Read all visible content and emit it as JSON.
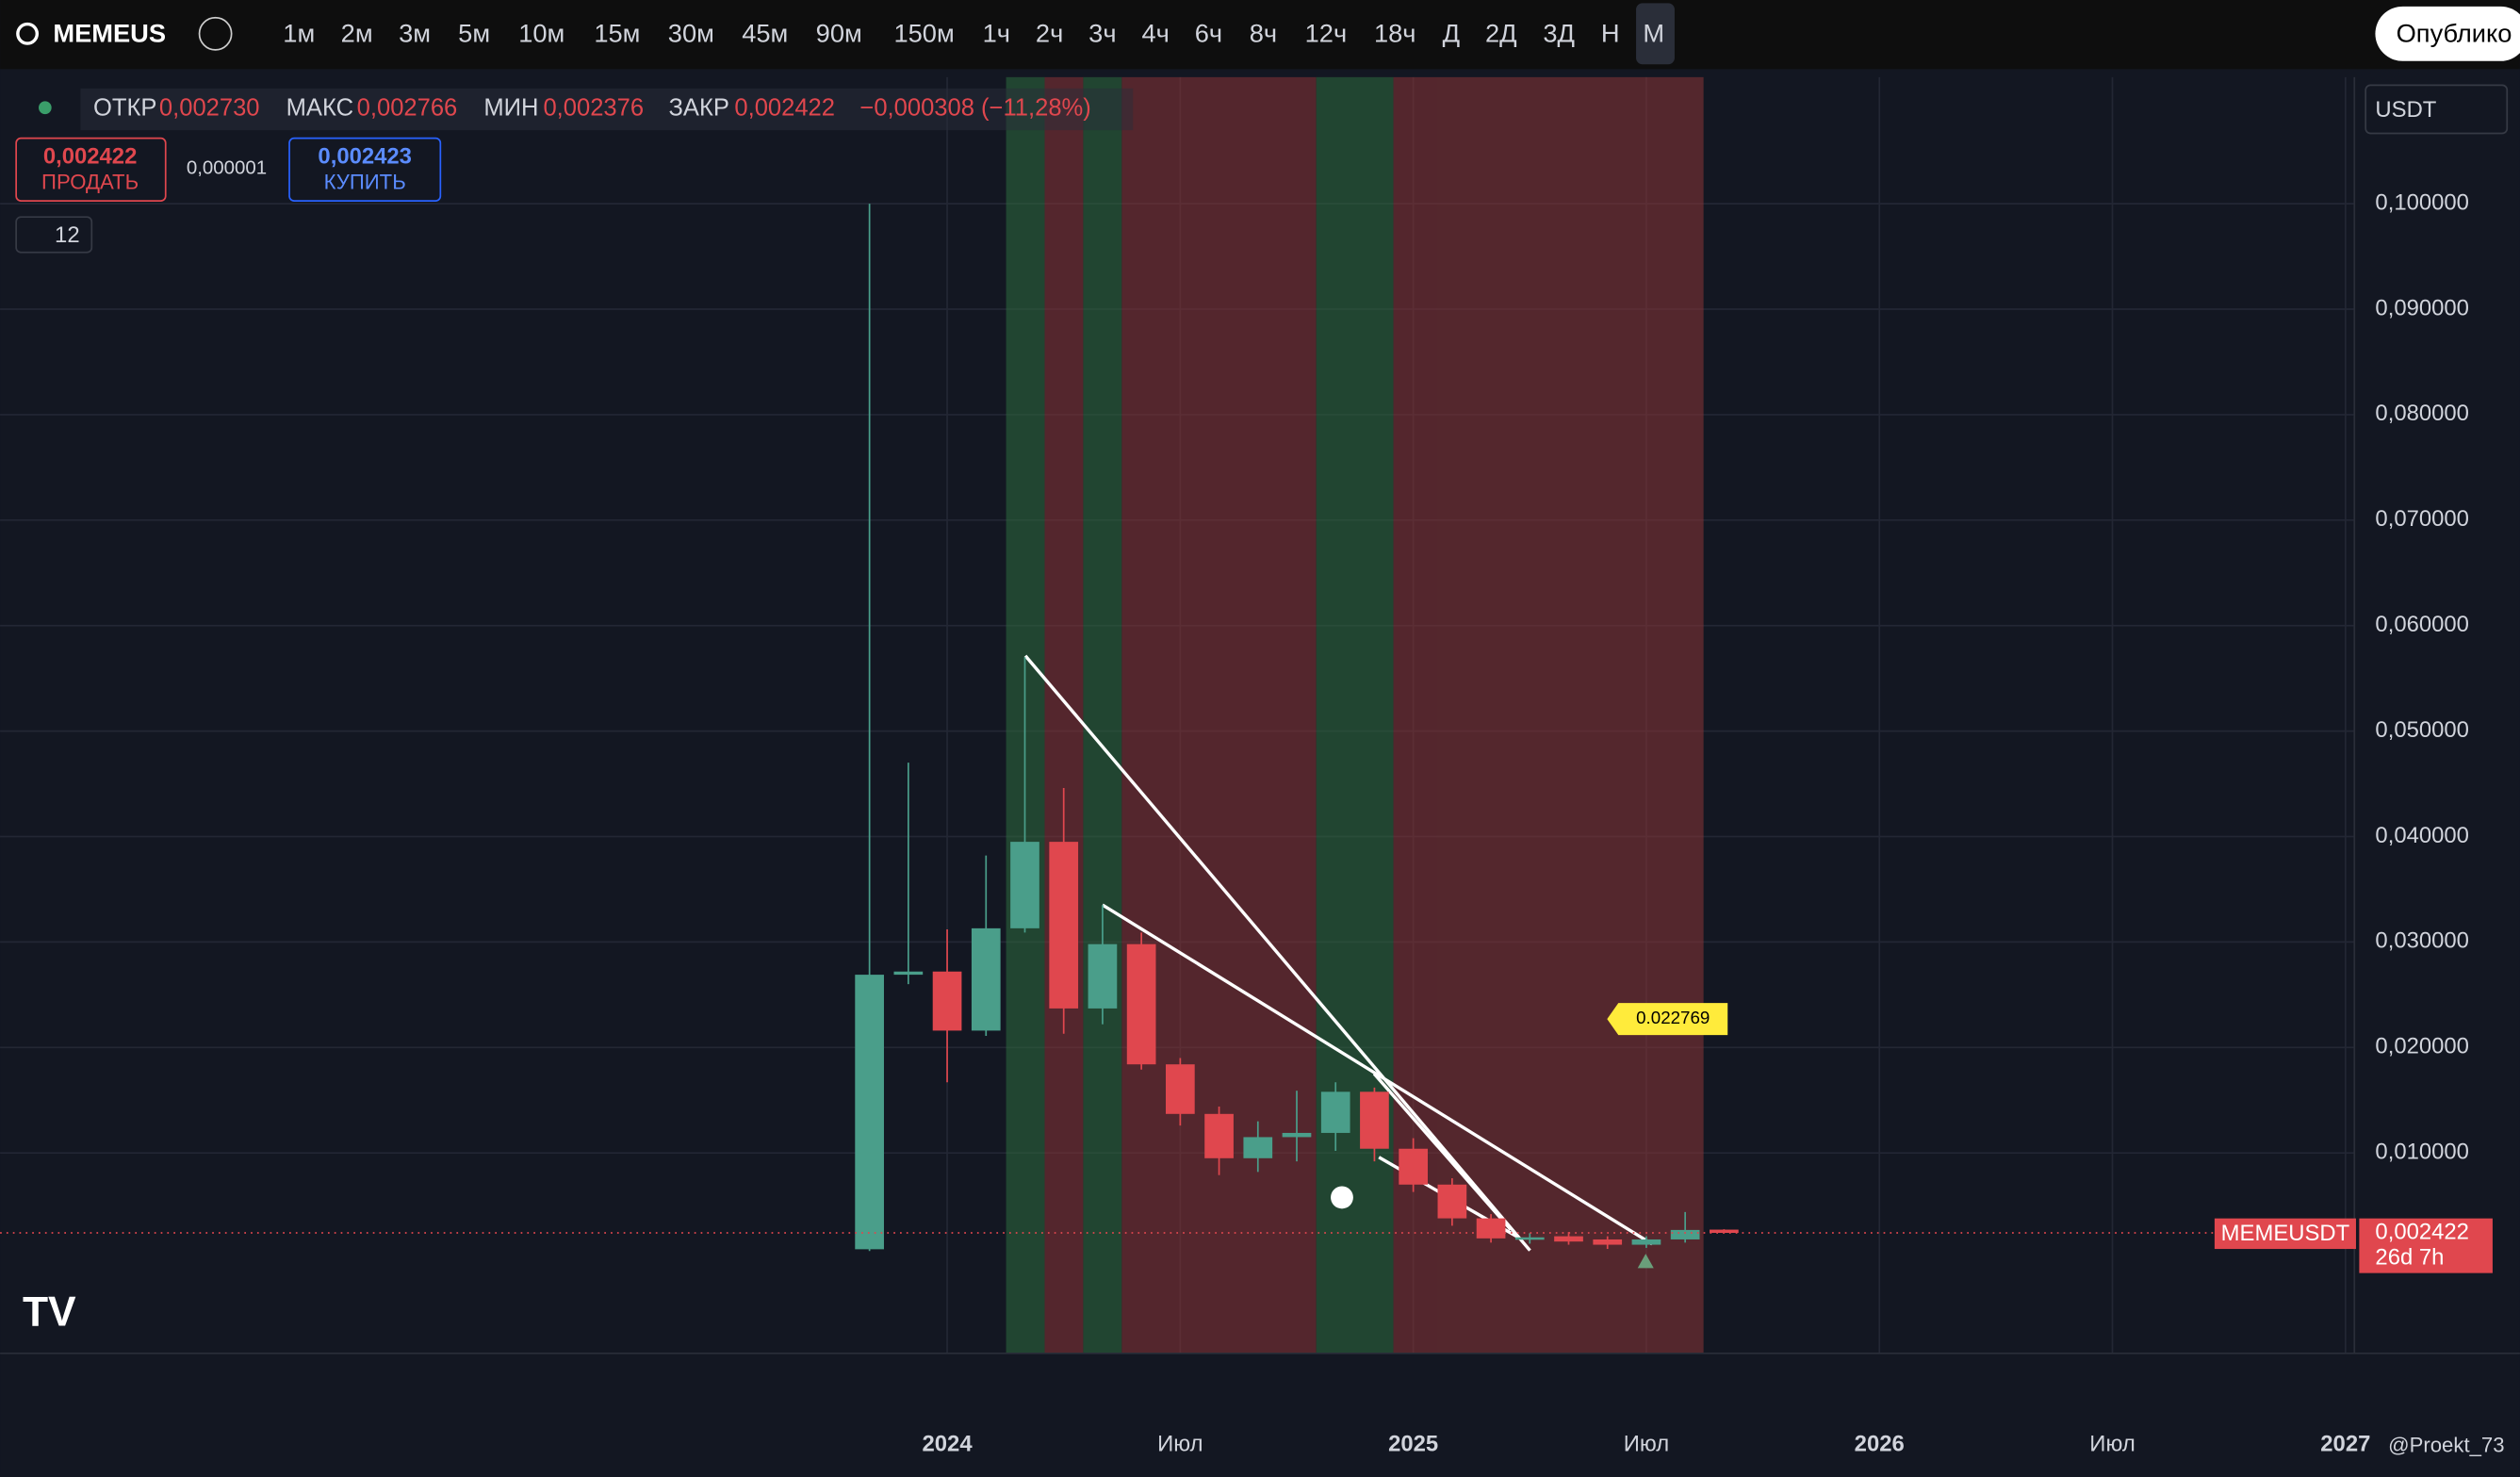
{
  "toolbar": {
    "symbol": "MEMEUS",
    "intervals": [
      "1м",
      "2м",
      "3м",
      "5м",
      "10м",
      "15м",
      "30м",
      "45м",
      "90м",
      "150м",
      "1ч",
      "2ч",
      "3ч",
      "4ч",
      "6ч",
      "8ч",
      "12ч",
      "18ч",
      "Д",
      "2Д",
      "3Д",
      "Н",
      "М"
    ],
    "publish": "Опублико"
  },
  "legend": {
    "open_name": "ОТКР",
    "open": "0,002730",
    "high_name": "МАКС",
    "high": "0,002766",
    "low_name": "МИН",
    "low": "0,002376",
    "close_name": "ЗАКР",
    "close": "0,002422",
    "change": "−0,000308 (−11,28%)"
  },
  "trade": {
    "sell": "0,002422",
    "sell_label": "ПРОДАТЬ",
    "spread": "0,000001",
    "buy": "0,002423",
    "buy_label": "КУПИТЬ",
    "indicators": "12",
    "currency": "USDT"
  },
  "alert_price": "0.022769",
  "price_tag": {
    "symbol": "MEMEUSDT",
    "price": "0,002422",
    "countdown": "26d 7h"
  },
  "watermark": "@Proekt_73",
  "chart_data": {
    "type": "candlestick",
    "up_color": "#4a9e8a",
    "down_color": "#e0474e",
    "grid": true,
    "categories": [
      null,
      null,
      "2024",
      null,
      null,
      null,
      null,
      null,
      "Июл",
      null,
      null,
      null,
      null,
      null,
      "2025",
      null,
      null,
      null,
      null,
      null,
      "Июл",
      null,
      null,
      null,
      null,
      null,
      "2026",
      null,
      null,
      null,
      null,
      null,
      "Июл",
      null,
      null,
      null,
      null,
      null,
      "2027"
    ],
    "open": [
      0.00087,
      0.0269,
      0.0272,
      0.0216,
      0.0313,
      0.0395,
      0.0237,
      0.0298,
      0.0184,
      0.0137,
      0.0095,
      0.0115,
      0.0119,
      0.0158,
      0.0104,
      0.007,
      0.0038,
      0.0019,
      0.0021,
      0.0018,
      0.0013,
      0.0018,
      0.00273,
      null,
      null,
      null,
      null,
      null,
      null,
      null,
      null,
      null,
      null,
      null,
      null,
      null,
      null,
      null,
      null
    ],
    "high": [
      0.1,
      0.047,
      0.0312,
      0.0382,
      0.057,
      0.0446,
      0.0335,
      0.0309,
      0.019,
      0.0144,
      0.013,
      0.0159,
      0.0167,
      0.0162,
      0.0114,
      0.0076,
      0.0042,
      0.0024,
      0.0025,
      0.0021,
      0.0021,
      0.0044,
      0.002766,
      null,
      null,
      null,
      null,
      null,
      null,
      null,
      null,
      null,
      null,
      null,
      null,
      null,
      null,
      null,
      null
    ],
    "low": [
      0.0007,
      0.026,
      0.0167,
      0.0211,
      0.0309,
      0.0213,
      0.0222,
      0.0179,
      0.0126,
      0.0079,
      0.0082,
      0.0092,
      0.0102,
      0.0092,
      0.0063,
      0.0031,
      0.0015,
      0.0014,
      0.0013,
      0.0009,
      0.001,
      0.0015,
      0.002376,
      null,
      null,
      null,
      null,
      null,
      null,
      null,
      null,
      null,
      null,
      null,
      null,
      null,
      null,
      null,
      null
    ],
    "close": [
      0.0269,
      0.0272,
      0.0216,
      0.0313,
      0.0395,
      0.0237,
      0.0298,
      0.0184,
      0.0137,
      0.0095,
      0.0115,
      0.0119,
      0.0158,
      0.0104,
      0.007,
      0.0038,
      0.0019,
      0.002,
      0.0016,
      0.0013,
      0.0018,
      0.0027,
      0.002422,
      null,
      null,
      null,
      null,
      null,
      null,
      null,
      null,
      null,
      null,
      null,
      null,
      null,
      null,
      null,
      null
    ],
    "ylim": [
      -0.009,
      0.112
    ],
    "yticks": [
      {
        "value": 0.01,
        "label": "0,010000"
      },
      {
        "value": 0.02,
        "label": "0,020000"
      },
      {
        "value": 0.03,
        "label": "0,030000"
      },
      {
        "value": 0.04,
        "label": "0,040000"
      },
      {
        "value": 0.05,
        "label": "0,050000"
      },
      {
        "value": 0.06,
        "label": "0,060000"
      },
      {
        "value": 0.07,
        "label": "0,070000"
      },
      {
        "value": 0.08,
        "label": "0,080000"
      },
      {
        "value": 0.09,
        "label": "0,090000"
      },
      {
        "value": 0.1,
        "label": "0,100000"
      }
    ]
  }
}
